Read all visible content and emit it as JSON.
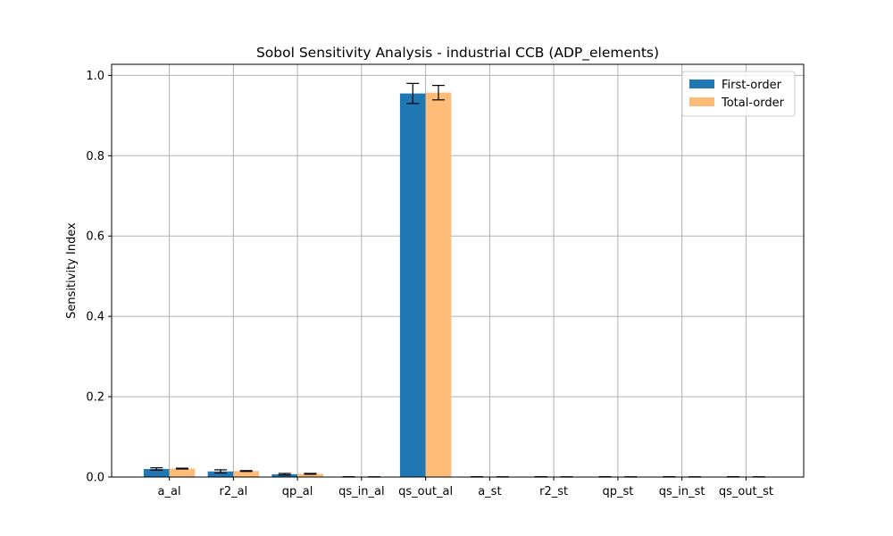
{
  "chart_data": {
    "type": "bar",
    "title": "Sobol Sensitivity Analysis - industrial CCB (ADP_elements)",
    "xlabel": "",
    "ylabel": "Sensitivity Index",
    "categories": [
      "a_al",
      "r2_al",
      "qp_al",
      "qs_in_al",
      "qs_out_al",
      "a_st",
      "r2_st",
      "qp_st",
      "qs_in_st",
      "qs_out_st"
    ],
    "series": [
      {
        "name": "First-order",
        "color": "#1f77b4",
        "values": [
          0.02,
          0.014,
          0.007,
          0.0003,
          0.955,
          0.0003,
          0.0003,
          0.0003,
          0.0003,
          0.0003
        ],
        "errors": [
          0.003,
          0.004,
          0.002,
          0.0005,
          0.025,
          0.0005,
          0.0005,
          0.0005,
          0.0005,
          0.0005
        ]
      },
      {
        "name": "Total-order",
        "color": "#ffbb78",
        "values": [
          0.021,
          0.015,
          0.008,
          0.0003,
          0.957,
          0.0003,
          0.0003,
          0.0003,
          0.0003,
          0.0003
        ],
        "errors": [
          0.001,
          0.001,
          0.001,
          0.0003,
          0.018,
          0.0003,
          0.0003,
          0.0003,
          0.0003,
          0.0003
        ]
      }
    ],
    "ylim": [
      0,
      1.0275
    ],
    "yticks": [
      0.0,
      0.2,
      0.4,
      0.6,
      0.8,
      1.0
    ],
    "ytick_labels": [
      "0.0",
      "0.2",
      "0.4",
      "0.6",
      "0.8",
      "1.0"
    ],
    "grid": true,
    "legend_position": "top-right"
  }
}
